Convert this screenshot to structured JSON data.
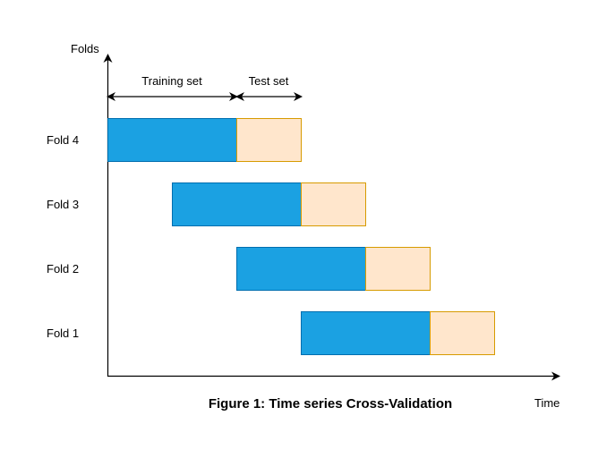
{
  "axes": {
    "y_label": "Folds",
    "x_label": "Time"
  },
  "legend": {
    "training_label": "Training set",
    "test_label": "Test set"
  },
  "folds": [
    {
      "label": "Fold 4",
      "train_start": 0,
      "train_end": 2,
      "test_end": 3
    },
    {
      "label": "Fold 3",
      "train_start": 1,
      "train_end": 3,
      "test_end": 4
    },
    {
      "label": "Fold 2",
      "train_start": 2,
      "train_end": 4,
      "test_end": 5
    },
    {
      "label": "Fold 1",
      "train_start": 3,
      "train_end": 5,
      "test_end": 6
    }
  ],
  "caption": "Figure 1: Time series Cross-Validation",
  "colors": {
    "train_fill": "#1BA1E2",
    "train_stroke": "#006EAF",
    "test_fill": "#FFE6CC",
    "test_stroke": "#D79B00",
    "axis": "#000000"
  }
}
